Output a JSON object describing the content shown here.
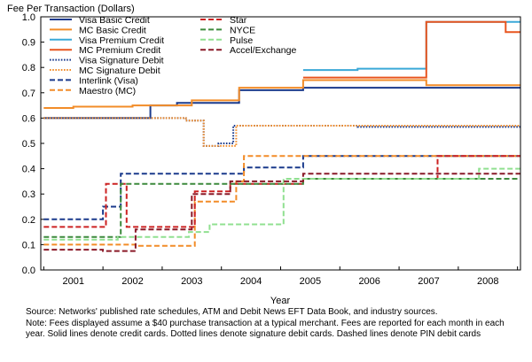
{
  "chart_data": {
    "type": "line",
    "title": "",
    "ylabel": "Fee Per Transaction (Dollars)",
    "xlabel": "Year",
    "ylim": [
      0,
      1.0
    ],
    "xlim": [
      2000.45,
      2008.55
    ],
    "yticks": [
      0.0,
      0.1,
      0.2,
      0.3,
      0.4,
      0.5,
      0.6,
      0.7,
      0.8,
      0.9,
      1.0
    ],
    "yticklabels": [
      "0.0",
      "0.1",
      "0.2",
      "0.3",
      "0.4",
      "0.5",
      "0.6",
      "0.7",
      "0.8",
      "0.9",
      "1.0"
    ],
    "xticks": [
      2001,
      2002,
      2003,
      2004,
      2005,
      2006,
      2007,
      2008
    ],
    "xticklabels": [
      "2001",
      "2002",
      "2003",
      "2004",
      "2005",
      "2006",
      "2007",
      "2008"
    ],
    "grid": false,
    "legend_position": "top-left, two columns",
    "series": [
      {
        "name": "Visa Basic Credit",
        "color": "#1a3a8c",
        "style": "solid",
        "x": [
          2000.5,
          2002.3,
          2002.3,
          2002.75,
          2002.75,
          2003.8,
          2003.8,
          2004.88,
          2004.88,
          2006.96,
          2006.96,
          2008.55
        ],
        "y": [
          0.6,
          0.6,
          0.65,
          0.65,
          0.66,
          0.66,
          0.71,
          0.71,
          0.72,
          0.72,
          0.72,
          0.72
        ]
      },
      {
        "name": "MC Basic Credit",
        "color": "#f28c28",
        "style": "solid",
        "x": [
          2000.5,
          2001.0,
          2001.0,
          2002.0,
          2002.0,
          2003.0,
          2003.0,
          2003.8,
          2003.8,
          2004.88,
          2004.88,
          2006.96,
          2006.96,
          2008.55
        ],
        "y": [
          0.64,
          0.64,
          0.645,
          0.645,
          0.65,
          0.65,
          0.67,
          0.67,
          0.72,
          0.72,
          0.75,
          0.75,
          0.73,
          0.73
        ]
      },
      {
        "name": "Visa Premium Credit",
        "color": "#3aa8d8",
        "style": "solid",
        "x": [
          2004.88,
          2005.8,
          2005.8,
          2006.96,
          2006.96,
          2008.55
        ],
        "y": [
          0.79,
          0.79,
          0.795,
          0.795,
          0.98,
          0.98
        ]
      },
      {
        "name": "MC Premium Credit",
        "color": "#e8551f",
        "style": "solid",
        "x": [
          2004.88,
          2006.96,
          2006.96,
          2008.3,
          2008.3,
          2008.55
        ],
        "y": [
          0.76,
          0.76,
          0.98,
          0.98,
          0.94,
          0.94
        ]
      },
      {
        "name": "Visa Signature Debit",
        "color": "#1a3a8c",
        "style": "dotted",
        "x": [
          2000.5,
          2002.9,
          2002.9,
          2003.2,
          2003.2,
          2003.45,
          2003.45,
          2003.7,
          2003.7,
          2005.8,
          2005.8,
          2008.55
        ],
        "y": [
          0.6,
          0.6,
          0.59,
          0.59,
          0.49,
          0.49,
          0.5,
          0.5,
          0.57,
          0.57,
          0.565,
          0.565
        ]
      },
      {
        "name": "MC Signature Debit",
        "color": "#f28c28",
        "style": "dotted",
        "x": [
          2000.5,
          2002.9,
          2002.9,
          2003.2,
          2003.2,
          2003.75,
          2003.75,
          2005.8,
          2005.8,
          2008.55
        ],
        "y": [
          0.6,
          0.6,
          0.59,
          0.59,
          0.49,
          0.49,
          0.57,
          0.57,
          0.57,
          0.57
        ]
      },
      {
        "name": "Interlink (Visa)",
        "color": "#1a3a8c",
        "style": "dashed",
        "x": [
          2000.5,
          2001.5,
          2001.5,
          2001.8,
          2001.8,
          2003.88,
          2003.88,
          2004.88,
          2004.88,
          2008.55
        ],
        "y": [
          0.2,
          0.2,
          0.25,
          0.25,
          0.38,
          0.38,
          0.405,
          0.405,
          0.45,
          0.45
        ]
      },
      {
        "name": "Maestro (MC)",
        "color": "#f28c28",
        "style": "dashed",
        "x": [
          2000.5,
          2002.05,
          2002.05,
          2003.05,
          2003.05,
          2003.75,
          2003.75,
          2003.88,
          2003.88,
          2008.55
        ],
        "y": [
          0.1,
          0.1,
          0.095,
          0.095,
          0.27,
          0.27,
          0.35,
          0.35,
          0.45,
          0.45
        ]
      },
      {
        "name": "Star",
        "color": "#cc2222",
        "style": "dashed",
        "x": [
          2000.5,
          2001.55,
          2001.55,
          2001.9,
          2001.9,
          2003.05,
          2003.05,
          2003.65,
          2003.65,
          2004.88,
          2004.88,
          2007.15,
          2007.15,
          2008.55
        ],
        "y": [
          0.17,
          0.17,
          0.34,
          0.34,
          0.17,
          0.17,
          0.31,
          0.31,
          0.34,
          0.34,
          0.36,
          0.36,
          0.45,
          0.45
        ]
      },
      {
        "name": "NYCE",
        "color": "#3d8a3d",
        "style": "dashed",
        "x": [
          2000.5,
          2001.8,
          2001.8,
          2004.88,
          2004.88,
          2008.55
        ],
        "y": [
          0.13,
          0.13,
          0.34,
          0.34,
          0.36,
          0.36
        ]
      },
      {
        "name": "Pulse",
        "color": "#90e090",
        "style": "dashed",
        "x": [
          2000.5,
          2001.75,
          2001.75,
          2002.95,
          2002.95,
          2003.3,
          2003.3,
          2004.55,
          2004.55,
          2007.85,
          2007.85,
          2008.55
        ],
        "y": [
          0.12,
          0.12,
          0.13,
          0.13,
          0.15,
          0.15,
          0.18,
          0.18,
          0.36,
          0.36,
          0.4,
          0.4
        ]
      },
      {
        "name": "Accel/Exchange",
        "color": "#8a1a28",
        "style": "dashed",
        "x": [
          2000.5,
          2001.5,
          2001.5,
          2002.05,
          2002.05,
          2003.0,
          2003.0,
          2003.65,
          2003.65,
          2004.88,
          2004.88,
          2008.55
        ],
        "y": [
          0.08,
          0.08,
          0.075,
          0.075,
          0.16,
          0.16,
          0.3,
          0.3,
          0.35,
          0.35,
          0.38,
          0.38
        ]
      }
    ]
  },
  "notes": {
    "source": "Source: Networks' published rate schedules, ATM and Debit News EFT Data Book, and industry sources.",
    "note": "Note: Fees displayed assume a $40 purchase transaction at a typical merchant. Fees are reported for each month in each year. Solid lines denote credit cards. Dotted lines denote signature debit cards. Dashed lines denote PIN debit cards"
  }
}
